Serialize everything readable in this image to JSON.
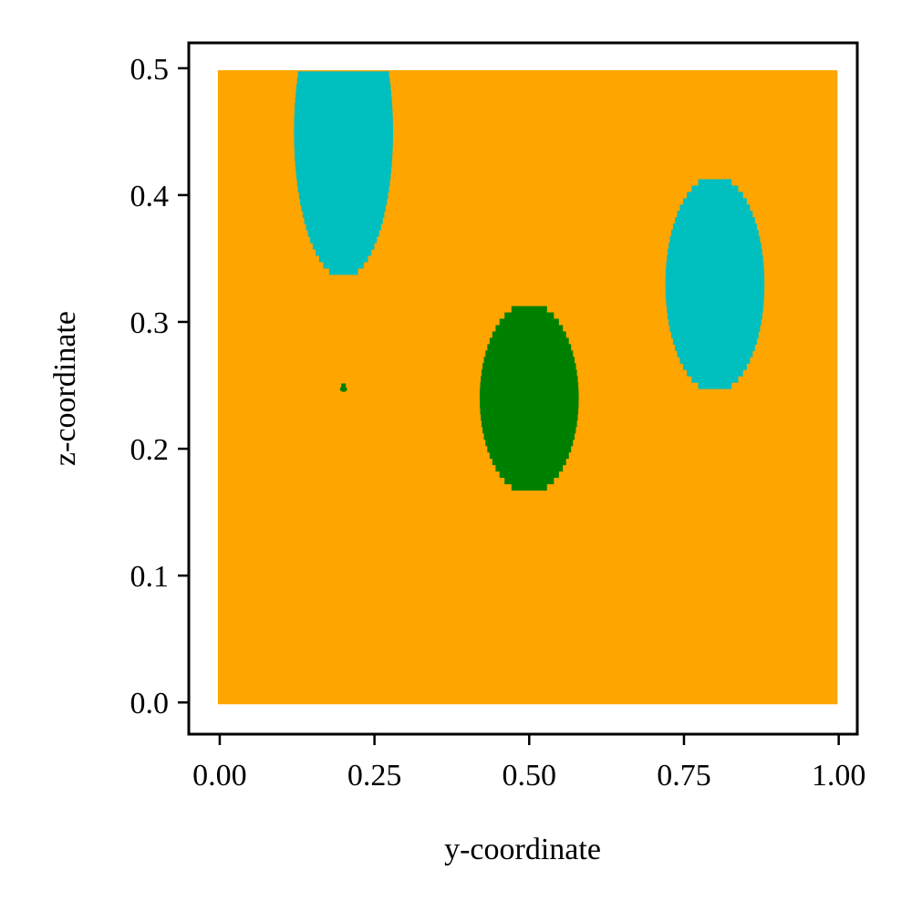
{
  "chart_data": {
    "type": "scatter",
    "title": "",
    "xlabel": "y-coordinate",
    "ylabel": "z-coordinate",
    "xlim": [
      -0.05,
      1.03
    ],
    "ylim": [
      -0.025,
      0.52
    ],
    "xticks": [
      0.0,
      0.25,
      0.5,
      0.75,
      1.0
    ],
    "xtick_labels": [
      "0.00",
      "0.25",
      "0.50",
      "0.75",
      "1.00"
    ],
    "yticks": [
      0.0,
      0.1,
      0.2,
      0.3,
      0.4,
      0.5
    ],
    "ytick_labels": [
      "0.0",
      "0.1",
      "0.2",
      "0.3",
      "0.4",
      "0.5"
    ],
    "grid": false,
    "legend": "none",
    "domain": {
      "y": [
        0.0,
        0.995
      ],
      "z": [
        0.0,
        0.497
      ]
    },
    "grid_spacing": 0.005,
    "background_color": "#ffa500",
    "regions": [
      {
        "color": "#00bfbf",
        "center": [
          0.2,
          0.45
        ],
        "semi_axes": [
          0.08,
          0.115
        ],
        "clip_top": 0.497
      },
      {
        "color": "#00bfbf",
        "center": [
          0.8,
          0.33
        ],
        "semi_axes": [
          0.08,
          0.085
        ]
      },
      {
        "color": "#008000",
        "center": [
          0.5,
          0.24
        ],
        "semi_axes": [
          0.08,
          0.075
        ]
      },
      {
        "color": "#008000",
        "center": [
          0.2,
          0.247
        ],
        "semi_axes": [
          0.005,
          0.003
        ]
      }
    ],
    "colors": {
      "orange": "#ffa500",
      "cyan": "#00bfbf",
      "green": "#008000",
      "axes": "#000000"
    }
  }
}
